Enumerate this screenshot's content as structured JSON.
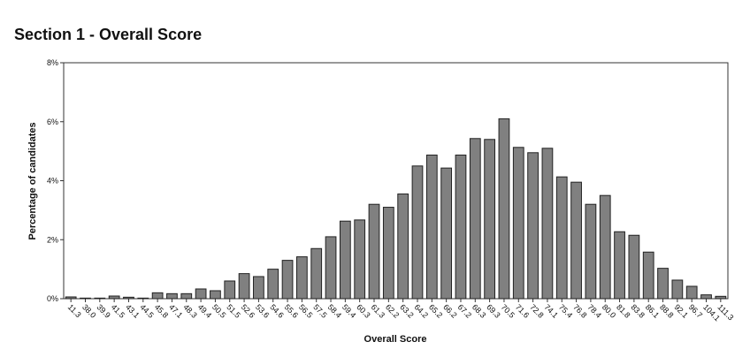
{
  "chart_data": {
    "type": "bar",
    "title": "Section 1 - Overall Score",
    "x_label": "Overall Score",
    "y_label": "Percentage of candidates",
    "categories": [
      "11.3",
      "38.0",
      "39.9",
      "41.5",
      "43.1",
      "44.5",
      "45.8",
      "47.1",
      "48.3",
      "49.4",
      "50.5",
      "51.5",
      "52.6",
      "53.6",
      "54.6",
      "55.6",
      "56.5",
      "57.5",
      "58.4",
      "59.4",
      "60.3",
      "61.3",
      "62.2",
      "63.2",
      "64.2",
      "65.2",
      "66.2",
      "67.2",
      "68.3",
      "69.3",
      "70.5",
      "71.6",
      "72.8",
      "74.1",
      "75.4",
      "76.8",
      "78.4",
      "80.0",
      "81.8",
      "83.8",
      "86.1",
      "88.8",
      "92.1",
      "96.7",
      "104.1",
      "111.3"
    ],
    "values": [
      0.06,
      0.02,
      0.02,
      0.09,
      0.05,
      0.02,
      0.2,
      0.17,
      0.17,
      0.33,
      0.27,
      0.6,
      0.85,
      0.75,
      1.0,
      1.3,
      1.42,
      1.7,
      2.1,
      2.63,
      2.67,
      3.2,
      3.1,
      3.55,
      4.5,
      4.87,
      4.43,
      4.87,
      5.43,
      5.4,
      6.1,
      5.13,
      4.95,
      5.1,
      4.13,
      3.95,
      3.2,
      3.5,
      2.27,
      2.15,
      1.58,
      1.03,
      0.63,
      0.42,
      0.13,
      0.08
    ],
    "color": "#808080",
    "ylim": [
      0,
      8
    ],
    "yticks": [
      {
        "value": 0,
        "label": "0%"
      },
      {
        "value": 2,
        "label": "2%"
      },
      {
        "value": 4,
        "label": "4%"
      },
      {
        "value": 6,
        "label": "6%"
      },
      {
        "value": 8,
        "label": "8%"
      }
    ]
  }
}
